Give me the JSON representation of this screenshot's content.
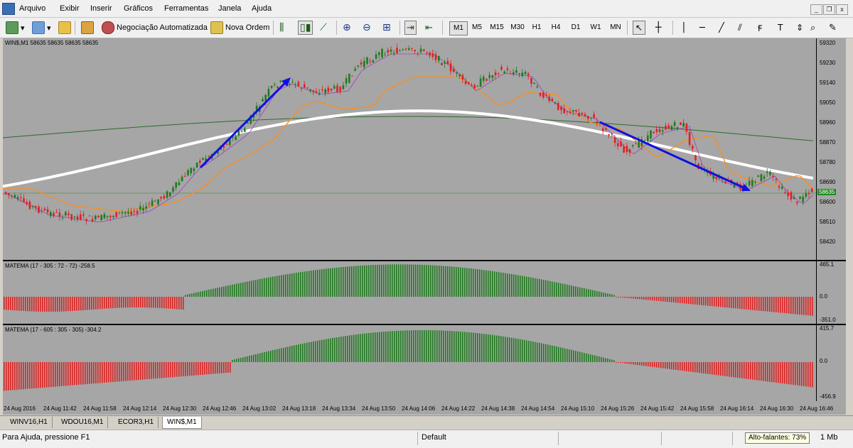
{
  "menu": {
    "items": [
      {
        "label": "Arquivo"
      },
      {
        "label": "Exibir"
      },
      {
        "label": "Inserir"
      },
      {
        "label": "Gráficos"
      },
      {
        "label": "Ferramentas"
      },
      {
        "label": "Janela"
      },
      {
        "label": "Ajuda"
      }
    ],
    "window_controls": {
      "minimize": "_",
      "restore": "❐",
      "close": "x"
    }
  },
  "toolbar": {
    "automated_trading_label": "Negociação Automatizada",
    "new_order_label": "Nova Ordem",
    "timeframes": [
      "M1",
      "M5",
      "M15",
      "M30",
      "H1",
      "H4",
      "D1",
      "W1",
      "MN"
    ],
    "active_timeframe": "M1"
  },
  "chart": {
    "main_title": "WIN$,M1  58635 58635 58635 58635",
    "price_labels": [
      "59320",
      "59230",
      "59140",
      "59050",
      "58960",
      "58870",
      "58780",
      "58690",
      "58600",
      "58510",
      "58420"
    ],
    "current_price": "58635",
    "indicator1": {
      "title": "MATEMA (17 - 305 : 72 - 72) -258.5",
      "max_label": "465.1",
      "zero_label": "0.0",
      "min_label": "-351.0"
    },
    "indicator2": {
      "title": "MATEMA (17 - 605 : 305 - 305) -304.2",
      "max_label": "415.7",
      "zero_label": "0.0",
      "min_label": "-456.9"
    },
    "time_labels": [
      "24 Aug 2016",
      "24 Aug 11:42",
      "24 Aug 11:58",
      "24 Aug 12:14",
      "24 Aug 12:30",
      "24 Aug 12:46",
      "24 Aug 13:02",
      "24 Aug 13:18",
      "24 Aug 13:34",
      "24 Aug 13:50",
      "24 Aug 14:06",
      "24 Aug 14:22",
      "24 Aug 14:38",
      "24 Aug 14:54",
      "24 Aug 15:10",
      "24 Aug 15:26",
      "24 Aug 15:42",
      "24 Aug 15:58",
      "24 Aug 16:14",
      "24 Aug 16:30",
      "24 Aug 16:46"
    ],
    "colors": {
      "background": "#a6a6a6",
      "bull": "#1f7a1f",
      "bear": "#e02020",
      "ma_fast": "#a040c0",
      "ma_mid": "#ff8c1a",
      "ma_slow": "#2e6b2e",
      "ma_white": "#ffffff",
      "arrow": "#1010e0"
    }
  },
  "tabs": [
    {
      "label": "WINV16,H1"
    },
    {
      "label": "WDOU16,M1"
    },
    {
      "label": "ECOR3,H1"
    },
    {
      "label": "WIN$,M1"
    }
  ],
  "status": {
    "help_text": "Para Ajuda, pressione F1",
    "profile": "Default",
    "speaker_tooltip": "Alto-falantes: 73%",
    "mb_text": "1 Mb"
  }
}
